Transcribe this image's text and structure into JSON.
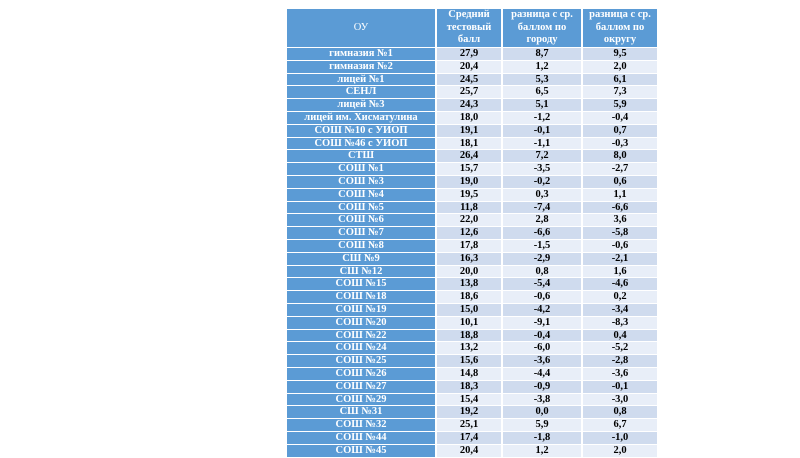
{
  "table": {
    "headers": [
      "ОУ",
      "Средний тестовый балл",
      "разница с ср. баллом по городу",
      "разница с ср. баллом по округу"
    ],
    "rows": [
      {
        "name": "гимназия №1",
        "score": "27,9",
        "diff_city": "8,7",
        "diff_district": "9,5"
      },
      {
        "name": "гимназия №2",
        "score": "20,4",
        "diff_city": "1,2",
        "diff_district": "2,0"
      },
      {
        "name": "лицей №1",
        "score": "24,5",
        "diff_city": "5,3",
        "diff_district": "6,1"
      },
      {
        "name": "СЕНЛ",
        "score": "25,7",
        "diff_city": "6,5",
        "diff_district": "7,3"
      },
      {
        "name": "лицей №3",
        "score": "24,3",
        "diff_city": "5,1",
        "diff_district": "5,9"
      },
      {
        "name": "лицей им. Хисматулина",
        "score": "18,0",
        "diff_city": "-1,2",
        "diff_district": "-0,4"
      },
      {
        "name": "СОШ №10 с УИОП",
        "score": "19,1",
        "diff_city": "-0,1",
        "diff_district": "0,7"
      },
      {
        "name": "СОШ №46 с УИОП",
        "score": "18,1",
        "diff_city": "-1,1",
        "diff_district": "-0,3"
      },
      {
        "name": "СТШ",
        "score": "26,4",
        "diff_city": "7,2",
        "diff_district": "8,0"
      },
      {
        "name": "СОШ №1",
        "score": "15,7",
        "diff_city": "-3,5",
        "diff_district": "-2,7"
      },
      {
        "name": "СОШ №3",
        "score": "19,0",
        "diff_city": "-0,2",
        "diff_district": "0,6"
      },
      {
        "name": "СОШ №4",
        "score": "19,5",
        "diff_city": "0,3",
        "diff_district": "1,1"
      },
      {
        "name": "СОШ №5",
        "score": "11,8",
        "diff_city": "-7,4",
        "diff_district": "-6,6"
      },
      {
        "name": "СОШ №6",
        "score": "22,0",
        "diff_city": "2,8",
        "diff_district": "3,6"
      },
      {
        "name": "СОШ №7",
        "score": "12,6",
        "diff_city": "-6,6",
        "diff_district": "-5,8"
      },
      {
        "name": "СОШ №8",
        "score": "17,8",
        "diff_city": "-1,5",
        "diff_district": "-0,6"
      },
      {
        "name": "СШ №9",
        "score": "16,3",
        "diff_city": "-2,9",
        "diff_district": "-2,1"
      },
      {
        "name": "СШ №12",
        "score": "20,0",
        "diff_city": "0,8",
        "diff_district": "1,6"
      },
      {
        "name": "СОШ №15",
        "score": "13,8",
        "diff_city": "-5,4",
        "diff_district": "-4,6"
      },
      {
        "name": "СОШ №18",
        "score": "18,6",
        "diff_city": "-0,6",
        "diff_district": "0,2"
      },
      {
        "name": "СОШ №19",
        "score": "15,0",
        "diff_city": "-4,2",
        "diff_district": "-3,4"
      },
      {
        "name": "СОШ №20",
        "score": "10,1",
        "diff_city": "-9,1",
        "diff_district": "-8,3"
      },
      {
        "name": "СОШ №22",
        "score": "18,8",
        "diff_city": "-0,4",
        "diff_district": "0,4"
      },
      {
        "name": "СОШ №24",
        "score": "13,2",
        "diff_city": "-6,0",
        "diff_district": "-5,2"
      },
      {
        "name": "СОШ №25",
        "score": "15,6",
        "diff_city": "-3,6",
        "diff_district": "-2,8"
      },
      {
        "name": "СОШ №26",
        "score": "14,8",
        "diff_city": "-4,4",
        "diff_district": "-3,6"
      },
      {
        "name": "СОШ №27",
        "score": "18,3",
        "diff_city": "-0,9",
        "diff_district": "-0,1"
      },
      {
        "name": "СОШ №29",
        "score": "15,4",
        "diff_city": "-3,8",
        "diff_district": "-3,0"
      },
      {
        "name": "СШ №31",
        "score": "19,2",
        "diff_city": "0,0",
        "diff_district": "0,8"
      },
      {
        "name": "СОШ №32",
        "score": "25,1",
        "diff_city": "5,9",
        "diff_district": "6,7"
      },
      {
        "name": "СОШ №44",
        "score": "17,4",
        "diff_city": "-1,8",
        "diff_district": "-1,0"
      },
      {
        "name": "СОШ №45",
        "score": "20,4",
        "diff_city": "1,2",
        "diff_district": "2,0"
      }
    ]
  }
}
